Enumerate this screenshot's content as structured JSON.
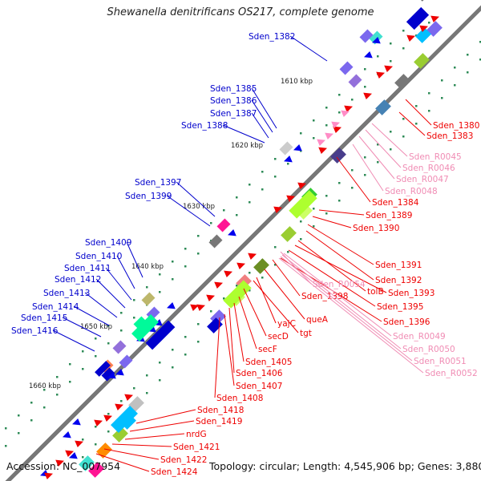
{
  "title": "Shewanella denitrificans OS217, complete genome",
  "accession_text": "Accession: NC_007954",
  "summary_text": "Topology: circular; Length: 4,545,906 bp; Genes: 3,880",
  "colors": {
    "backbone": "#777777",
    "tick": "#2e8b57",
    "left_label": "#0000cc",
    "right_label": "#ee0000",
    "rna_label": "#f08cb4"
  },
  "scale_ticks": [
    "1610 kbp",
    "1620 kbp",
    "1630 kbp",
    "1640 kbp",
    "1650 kbp",
    "1660 kbp"
  ],
  "left_labels": [
    "Sden_1382",
    "Sden_1385",
    "Sden_1386",
    "Sden_1387",
    "Sden_1388",
    "Sden_1397",
    "Sden_1399",
    "Sden_1409",
    "Sden_1410",
    "Sden_1411",
    "Sden_1412",
    "Sden_1413",
    "Sden_1414",
    "Sden_1415",
    "Sden_1416"
  ],
  "right_labels": [
    "Sden_1380",
    "Sden_1383",
    "Sden_1384",
    "Sden_1389",
    "Sden_1390",
    "Sden_1391",
    "Sden_1392",
    "tolB",
    "Sden_1393",
    "Sden_1395",
    "Sden_1396",
    "Sden_1398",
    "queA",
    "yajC",
    "tgt",
    "secD",
    "secF",
    "Sden_1405",
    "Sden_1406",
    "Sden_1407",
    "Sden_1408",
    "Sden_1418",
    "Sden_1419",
    "nrdG",
    "Sden_1421",
    "Sden_1422",
    "Sden_1424"
  ],
  "rna_labels": [
    "Sden_R0045",
    "Sden_R0046",
    "Sden_R0047",
    "Sden_R0048",
    "Sden_R0054",
    "Sden_R0049",
    "Sden_R0050",
    "Sden_R0051",
    "Sden_R0052"
  ]
}
